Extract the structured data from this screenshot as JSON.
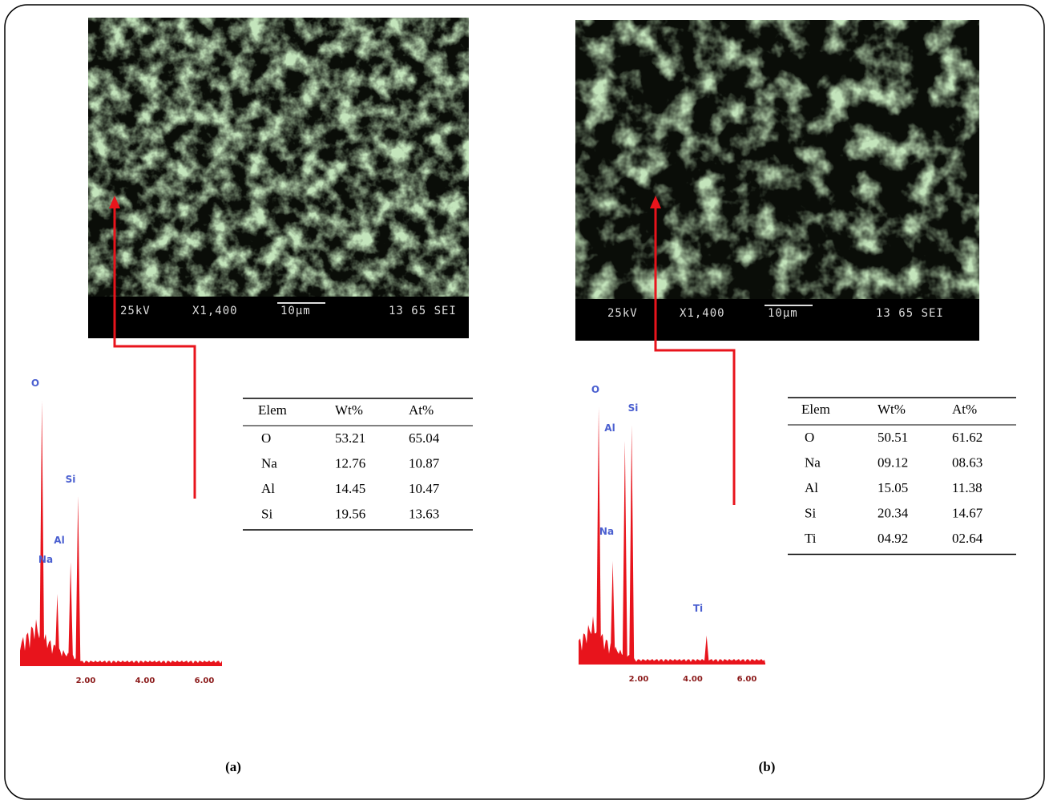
{
  "panels": [
    {
      "caption": "(a)",
      "sem": {
        "voltage": "25kV",
        "magnification": "X1,400",
        "scale": "10µm",
        "id": "13 65 SEI"
      },
      "spectrum": {
        "xticks": [
          "2.00",
          "4.00",
          "6.00"
        ],
        "peaks": [
          {
            "label": "O",
            "energy": 0.52,
            "intensity": 100
          },
          {
            "label": "Na",
            "energy": 1.04,
            "intensity": 27
          },
          {
            "label": "Al",
            "energy": 1.49,
            "intensity": 39
          },
          {
            "label": "Si",
            "energy": 1.74,
            "intensity": 64
          }
        ]
      },
      "table": {
        "header": [
          "Elem",
          "Wt%",
          "At%"
        ],
        "rows": [
          [
            "O",
            "53.21",
            "65.04"
          ],
          [
            "Na",
            "12.76",
            "10.87"
          ],
          [
            "Al",
            "14.45",
            "10.47"
          ],
          [
            "Si",
            "19.56",
            "13.63"
          ]
        ]
      }
    },
    {
      "caption": "(b)",
      "sem": {
        "voltage": "25kV",
        "magnification": "X1,400",
        "scale": "10µm",
        "id": "13 65 SEI"
      },
      "spectrum": {
        "xticks": [
          "2.00",
          "4.00",
          "6.00"
        ],
        "peaks": [
          {
            "label": "O",
            "energy": 0.52,
            "intensity": 100
          },
          {
            "label": "Na",
            "energy": 1.04,
            "intensity": 40
          },
          {
            "label": "Al",
            "energy": 1.49,
            "intensity": 87
          },
          {
            "label": "Si",
            "energy": 1.74,
            "intensity": 93
          },
          {
            "label": "Ti",
            "energy": 4.51,
            "intensity": 11
          }
        ]
      },
      "table": {
        "header": [
          "Elem",
          "Wt%",
          "At%"
        ],
        "rows": [
          [
            "O",
            "50.51",
            "61.62"
          ],
          [
            "Na",
            "09.12",
            "08.63"
          ],
          [
            "Al",
            "15.05",
            "11.38"
          ],
          [
            "Si",
            "20.34",
            "14.67"
          ],
          [
            "Ti",
            "04.92",
            "02.64"
          ]
        ]
      }
    }
  ]
}
